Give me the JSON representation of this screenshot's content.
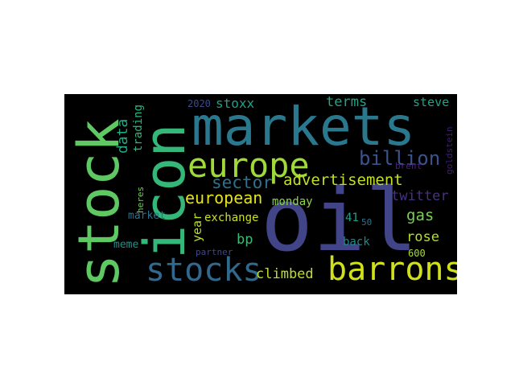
{
  "words": [
    {
      "key": "oil",
      "text": "oil",
      "color": "#414487"
    },
    {
      "key": "markets",
      "text": "markets",
      "color": "#2a788e"
    },
    {
      "key": "stock",
      "text": "stock",
      "color": "#5ec962"
    },
    {
      "key": "icon",
      "text": "icon",
      "color": "#35b779"
    },
    {
      "key": "europe",
      "text": "europe",
      "color": "#a0da39"
    },
    {
      "key": "barrons",
      "text": "barrons",
      "color": "#d0e11c"
    },
    {
      "key": "stocks",
      "text": "stocks",
      "color": "#31688e"
    },
    {
      "key": "billion",
      "text": "billion",
      "color": "#3b528b"
    },
    {
      "key": "advertisement",
      "text": "advertisement",
      "color": "#c2df23"
    },
    {
      "key": "sector",
      "text": "sector",
      "color": "#2c728e"
    },
    {
      "key": "european",
      "text": "european",
      "color": "#e5e419"
    },
    {
      "key": "twitter",
      "text": "twitter",
      "color": "#46327e"
    },
    {
      "key": "gas",
      "text": "gas",
      "color": "#7ad151"
    },
    {
      "key": "rose",
      "text": "rose",
      "color": "#b5de2b"
    },
    {
      "key": "bp",
      "text": "bp",
      "color": "#3bbb75"
    },
    {
      "key": "climbed",
      "text": "climbed",
      "color": "#bddf26"
    },
    {
      "key": "terms",
      "text": "terms",
      "color": "#21a585"
    },
    {
      "key": "steve",
      "text": "steve",
      "color": "#20a486"
    },
    {
      "key": "stoxx",
      "text": "stoxx",
      "color": "#1fa187"
    },
    {
      "key": "data",
      "text": "data",
      "color": "#22a884"
    },
    {
      "key": "trading",
      "text": "trading",
      "color": "#2fb47c"
    },
    {
      "key": "year",
      "text": "year",
      "color": "#b8de29"
    },
    {
      "key": "exchange",
      "text": "exchange",
      "color": "#c8e020"
    },
    {
      "key": "monday",
      "text": "monday",
      "color": "#8bd646"
    },
    {
      "key": "market",
      "text": "market",
      "color": "#2d708e"
    },
    {
      "key": "meme",
      "text": "meme",
      "color": "#21918c"
    },
    {
      "key": "back",
      "text": "back",
      "color": "#23898e"
    },
    {
      "key": "n600",
      "text": "600",
      "color": "#a8db34"
    },
    {
      "key": "n41",
      "text": "41",
      "color": "#1f9e89"
    },
    {
      "key": "n50",
      "text": "50",
      "color": "#2e6f8e"
    },
    {
      "key": "n2020",
      "text": "2020",
      "color": "#3e4989"
    },
    {
      "key": "heres",
      "text": "heres",
      "color": "#6ece58"
    },
    {
      "key": "brent",
      "text": "brent",
      "color": "#482475"
    },
    {
      "key": "goldstein",
      "text": "goldstein",
      "color": "#3f1f6f"
    },
    {
      "key": "partner",
      "text": "partner",
      "color": "#404688"
    }
  ]
}
